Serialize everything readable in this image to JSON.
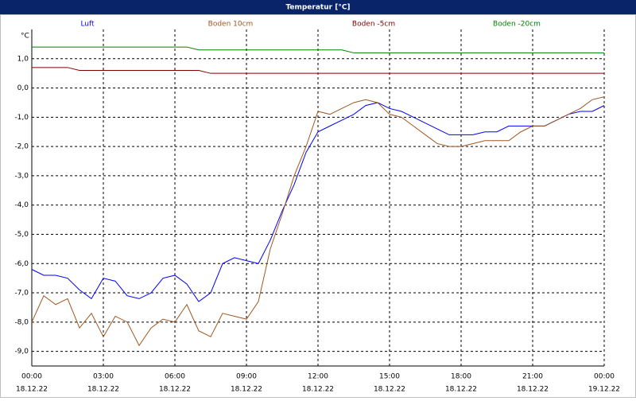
{
  "chart_data": {
    "type": "line",
    "title": "Temperatur [°C]",
    "y_unit": "°C",
    "x": [
      0,
      0.5,
      1,
      1.5,
      2,
      2.5,
      3,
      3.5,
      4,
      4.5,
      5,
      5.5,
      6,
      6.5,
      7,
      7.5,
      8,
      8.5,
      9,
      9.5,
      10,
      10.5,
      11,
      11.5,
      12,
      12.5,
      13,
      13.5,
      14,
      14.5,
      15,
      15.5,
      16,
      16.5,
      17,
      17.5,
      18,
      18.5,
      19,
      19.5,
      20,
      20.5,
      21,
      21.5,
      22,
      22.5,
      23,
      23.5,
      24
    ],
    "xlim": [
      0,
      24
    ],
    "xticks": [
      {
        "value": 0,
        "label": "00:00"
      },
      {
        "value": 3,
        "label": "03:00"
      },
      {
        "value": 6,
        "label": "06:00"
      },
      {
        "value": 9,
        "label": "09:00"
      },
      {
        "value": 12,
        "label": "12:00"
      },
      {
        "value": 15,
        "label": "15:00"
      },
      {
        "value": 18,
        "label": "18:00"
      },
      {
        "value": 21,
        "label": "21:00"
      },
      {
        "value": 24,
        "label": "00:00"
      }
    ],
    "xtick_dates": [
      "18.12.22",
      "18.12.22",
      "18.12.22",
      "18.12.22",
      "18.12.22",
      "18.12.22",
      "18.12.22",
      "18.12.22",
      "19.12.22"
    ],
    "ylim": [
      -9.5,
      2
    ],
    "yticks": [
      {
        "value": 1,
        "label": "1,0"
      },
      {
        "value": 0,
        "label": "0,0"
      },
      {
        "value": -1,
        "label": "-1,0"
      },
      {
        "value": -2,
        "label": "-2,0"
      },
      {
        "value": -3,
        "label": "-3,0"
      },
      {
        "value": -4,
        "label": "-4,0"
      },
      {
        "value": -5,
        "label": "-5,0"
      },
      {
        "value": -6,
        "label": "-6,0"
      },
      {
        "value": -7,
        "label": "-7,0"
      },
      {
        "value": -8,
        "label": "-8,0"
      },
      {
        "value": -9,
        "label": "-9,0"
      }
    ],
    "grid": true,
    "series": [
      {
        "name": "Luft",
        "color": "#0000ff",
        "values": [
          -6.2,
          -6.4,
          -6.4,
          -6.5,
          -6.9,
          -7.2,
          -6.5,
          -6.6,
          -7.1,
          -7.2,
          -7.0,
          -6.5,
          -6.4,
          -6.7,
          -7.3,
          -7.0,
          -6.0,
          -5.8,
          -5.9,
          -6.0,
          -5.2,
          -4.2,
          -3.3,
          -2.2,
          -1.5,
          -1.3,
          -1.1,
          -0.9,
          -0.6,
          -0.5,
          -0.7,
          -0.8,
          -1.0,
          -1.2,
          -1.4,
          -1.6,
          -1.6,
          -1.6,
          -1.5,
          -1.5,
          -1.3,
          -1.3,
          -1.3,
          -1.3,
          -1.1,
          -0.9,
          -0.8,
          -0.8,
          -0.6
        ]
      },
      {
        "name": "Boden 10cm",
        "color": "#a0561e",
        "values": [
          -8.0,
          -7.1,
          -7.4,
          -7.2,
          -8.2,
          -7.7,
          -8.5,
          -7.8,
          -8.0,
          -8.8,
          -8.2,
          -7.9,
          -8.0,
          -7.4,
          -8.3,
          -8.5,
          -7.7,
          -7.8,
          -7.9,
          -7.3,
          -5.5,
          -4.3,
          -3.0,
          -2.0,
          -0.8,
          -0.9,
          -0.7,
          -0.5,
          -0.4,
          -0.5,
          -0.9,
          -1.0,
          -1.3,
          -1.6,
          -1.9,
          -2.0,
          -2.0,
          -1.9,
          -1.8,
          -1.8,
          -1.8,
          -1.5,
          -1.3,
          -1.3,
          -1.1,
          -0.9,
          -0.7,
          -0.4,
          -0.3
        ]
      },
      {
        "name": "Boden -5cm",
        "color": "#800000",
        "values": [
          0.7,
          0.7,
          0.7,
          0.7,
          0.6,
          0.6,
          0.6,
          0.6,
          0.6,
          0.6,
          0.6,
          0.6,
          0.6,
          0.6,
          0.6,
          0.5,
          0.5,
          0.5,
          0.5,
          0.5,
          0.5,
          0.5,
          0.5,
          0.5,
          0.5,
          0.5,
          0.5,
          0.5,
          0.5,
          0.5,
          0.5,
          0.5,
          0.5,
          0.5,
          0.5,
          0.5,
          0.5,
          0.5,
          0.5,
          0.5,
          0.5,
          0.5,
          0.5,
          0.5,
          0.5,
          0.5,
          0.5,
          0.5,
          0.5
        ]
      },
      {
        "name": "Boden -20cm",
        "color": "#008000",
        "values": [
          1.4,
          1.4,
          1.4,
          1.4,
          1.4,
          1.4,
          1.4,
          1.4,
          1.4,
          1.4,
          1.4,
          1.4,
          1.4,
          1.4,
          1.3,
          1.3,
          1.3,
          1.3,
          1.3,
          1.3,
          1.3,
          1.3,
          1.3,
          1.3,
          1.3,
          1.3,
          1.3,
          1.2,
          1.2,
          1.2,
          1.2,
          1.2,
          1.2,
          1.2,
          1.2,
          1.2,
          1.2,
          1.2,
          1.2,
          1.2,
          1.2,
          1.2,
          1.2,
          1.2,
          1.2,
          1.2,
          1.2,
          1.2,
          1.2
        ]
      }
    ]
  }
}
